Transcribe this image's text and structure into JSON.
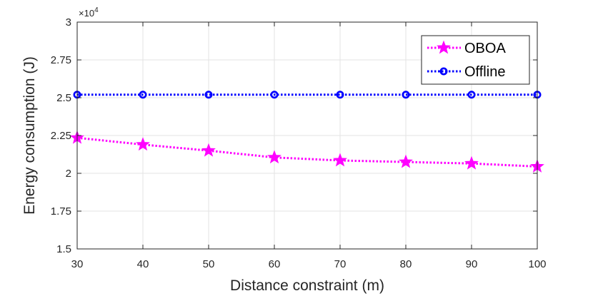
{
  "chart_data": {
    "type": "line",
    "title": "",
    "xlabel": "Distance constraint (m)",
    "ylabel": "Energy consumption (J)",
    "y_exponent_label": "×10",
    "y_exponent_power": "4",
    "x": [
      30,
      40,
      50,
      60,
      70,
      80,
      90,
      100
    ],
    "x_tick_labels": [
      "30",
      "40",
      "50",
      "60",
      "70",
      "80",
      "90",
      "100"
    ],
    "xlim": [
      30,
      100
    ],
    "y_ticks": [
      1.5,
      1.75,
      2,
      2.25,
      2.5,
      2.75,
      3
    ],
    "y_tick_labels": [
      "1.5",
      "1.75",
      "2",
      "2.25",
      "2.5",
      "2.75",
      "3"
    ],
    "ylim": [
      1.5,
      3
    ],
    "grid": true,
    "legend_position": "top-right",
    "series": [
      {
        "name": "OBOA",
        "marker": "star",
        "color": "#ff00ff",
        "values": [
          2.235,
          2.19,
          2.15,
          2.105,
          2.085,
          2.075,
          2.065,
          2.045
        ]
      },
      {
        "name": "Offline",
        "marker": "circle",
        "color": "#0000ff",
        "values": [
          2.52,
          2.52,
          2.52,
          2.52,
          2.52,
          2.52,
          2.52,
          2.52
        ]
      }
    ]
  }
}
